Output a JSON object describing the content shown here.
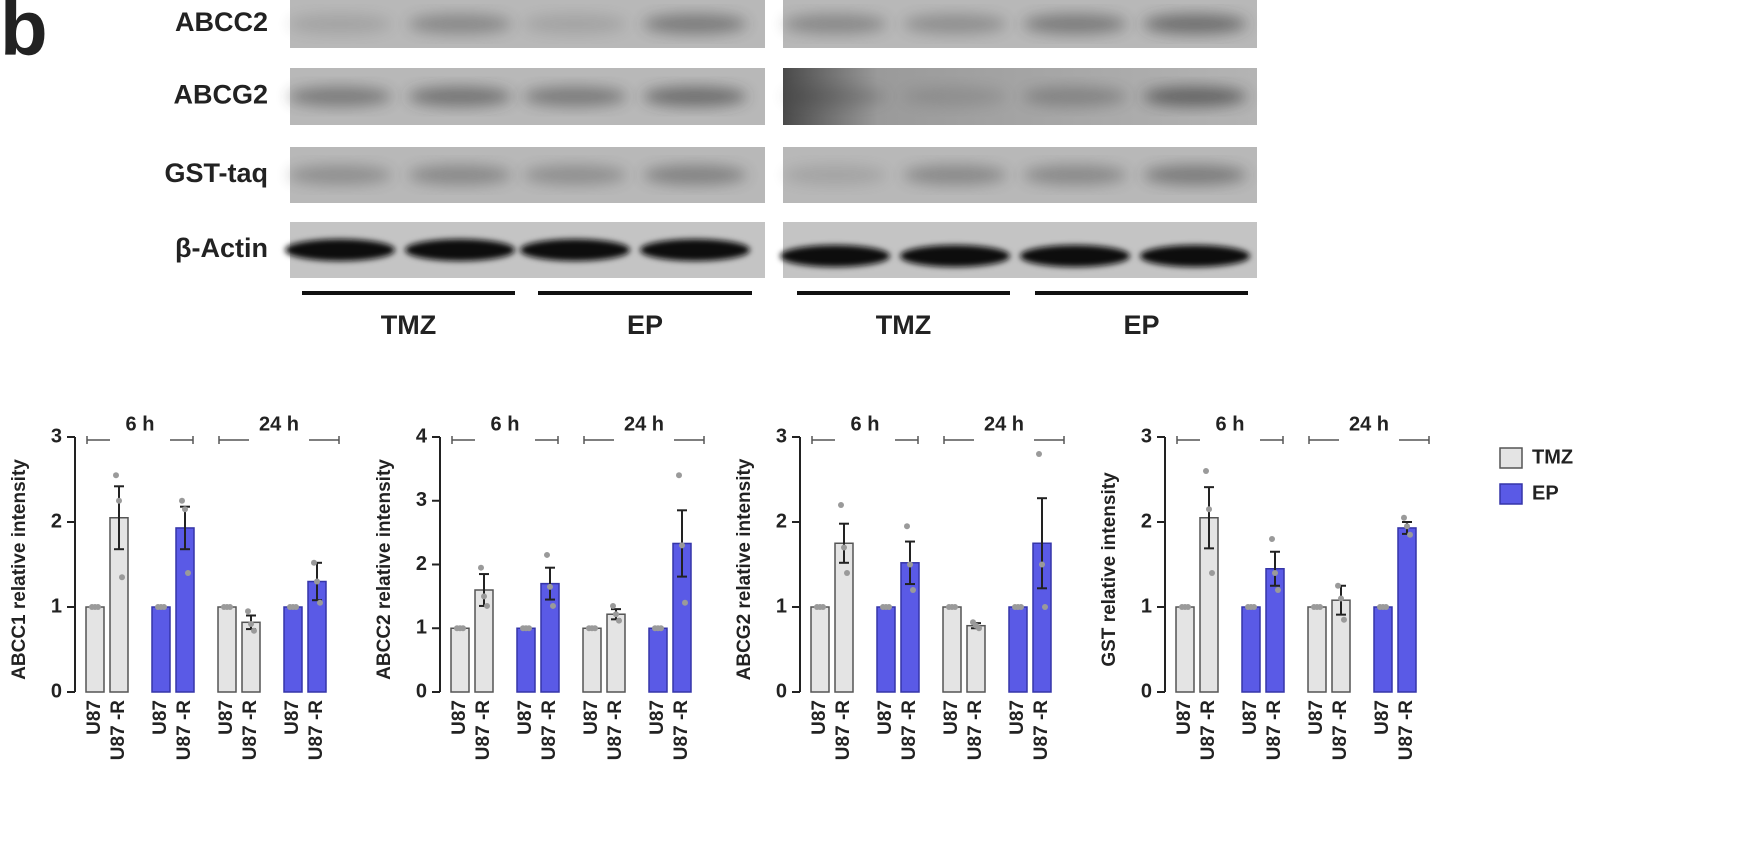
{
  "blot": {
    "panel": "b",
    "rows": [
      "ABCC2",
      "ABCG2",
      "GST-taq",
      "β-Actin"
    ],
    "groups": [
      "TMZ",
      "EP",
      "TMZ",
      "EP"
    ]
  },
  "chart_data": [
    {
      "type": "bar",
      "ylabel": "ABCC1 relative intensity",
      "categories": [
        "U87",
        "U87 -R",
        "U87",
        "U87 -R",
        "U87",
        "U87 -R",
        "U87",
        "U87 -R"
      ],
      "groups": [
        "6 h",
        "24 h"
      ],
      "ylim": [
        0,
        3
      ],
      "yticks": [
        0,
        1,
        2,
        3
      ],
      "series": [
        {
          "color": "#e4e4e4",
          "values": [
            1,
            2.05,
            null,
            null,
            1,
            0.82,
            null,
            null
          ],
          "errors": [
            0,
            0.37,
            null,
            null,
            0,
            0.08,
            null,
            null
          ],
          "points": [
            [
              1,
              1,
              1
            ],
            [
              2.55,
              2.25,
              1.35
            ],
            null,
            null,
            [
              1,
              1,
              1
            ],
            [
              0.95,
              0.8,
              0.72
            ],
            null,
            null
          ]
        },
        {
          "color": "#5a5ae6",
          "values": [
            null,
            null,
            1,
            1.93,
            null,
            null,
            1,
            1.3
          ],
          "errors": [
            null,
            null,
            0,
            0.25,
            null,
            null,
            0,
            0.22
          ],
          "points": [
            null,
            null,
            [
              1,
              1,
              1
            ],
            [
              2.25,
              2.15,
              1.4
            ],
            null,
            null,
            [
              1,
              1,
              1
            ],
            [
              1.52,
              1.3,
              1.05
            ]
          ]
        }
      ]
    },
    {
      "type": "bar",
      "ylabel": "ABCC2 relative intensity",
      "categories": [
        "U87",
        "U87 -R",
        "U87",
        "U87 -R",
        "U87",
        "U87 -R",
        "U87",
        "U87 -R"
      ],
      "groups": [
        "6 h",
        "24 h"
      ],
      "ylim": [
        0,
        4
      ],
      "yticks": [
        0,
        1,
        2,
        3,
        4
      ],
      "series": [
        {
          "color": "#e4e4e4",
          "values": [
            1,
            1.6,
            null,
            null,
            1,
            1.22,
            null,
            null
          ],
          "errors": [
            0,
            0.25,
            null,
            null,
            0,
            0.08,
            null,
            null
          ],
          "points": [
            [
              1,
              1,
              1
            ],
            [
              1.95,
              1.5,
              1.35
            ],
            null,
            null,
            [
              1,
              1,
              1
            ],
            [
              1.35,
              1.22,
              1.12
            ],
            null,
            null
          ]
        },
        {
          "color": "#5a5ae6",
          "values": [
            null,
            null,
            1,
            1.7,
            null,
            null,
            1,
            2.33
          ],
          "errors": [
            null,
            null,
            0,
            0.25,
            null,
            null,
            0,
            0.52
          ],
          "points": [
            null,
            null,
            [
              1,
              1,
              1
            ],
            [
              2.15,
              1.65,
              1.35
            ],
            null,
            null,
            [
              1,
              1,
              1
            ],
            [
              3.4,
              2.3,
              1.4
            ]
          ]
        }
      ]
    },
    {
      "type": "bar",
      "ylabel": "ABCG2 relative intensity",
      "categories": [
        "U87",
        "U87 -R",
        "U87",
        "U87 -R",
        "U87",
        "U87 -R",
        "U87",
        "U87 -R"
      ],
      "groups": [
        "6 h",
        "24 h"
      ],
      "ylim": [
        0,
        3
      ],
      "yticks": [
        0,
        1,
        2,
        3
      ],
      "series": [
        {
          "color": "#e4e4e4",
          "values": [
            1,
            1.75,
            null,
            null,
            1,
            0.78,
            null,
            null
          ],
          "errors": [
            0,
            0.23,
            null,
            null,
            0,
            0.03,
            null,
            null
          ],
          "points": [
            [
              1,
              1,
              1
            ],
            [
              2.2,
              1.7,
              1.4
            ],
            null,
            null,
            [
              1,
              1,
              1
            ],
            [
              0.82,
              0.78,
              0.75
            ],
            null,
            null
          ]
        },
        {
          "color": "#5a5ae6",
          "values": [
            null,
            null,
            1,
            1.52,
            null,
            null,
            1,
            1.75
          ],
          "errors": [
            null,
            null,
            0,
            0.25,
            null,
            null,
            0,
            0.53
          ],
          "points": [
            null,
            null,
            [
              1,
              1,
              1
            ],
            [
              1.95,
              1.5,
              1.2
            ],
            null,
            null,
            [
              1,
              1,
              1
            ],
            [
              2.8,
              1.5,
              1.0
            ]
          ]
        }
      ]
    },
    {
      "type": "bar",
      "ylabel": "GST relative intensity",
      "legend": "right",
      "categories": [
        "U87",
        "U87 -R",
        "U87",
        "U87 -R",
        "U87",
        "U87 -R",
        "U87",
        "U87 -R"
      ],
      "groups": [
        "6 h",
        "24 h"
      ],
      "ylim": [
        0,
        3
      ],
      "yticks": [
        0,
        1,
        2,
        3
      ],
      "series": [
        {
          "name": "TMZ",
          "color": "#e4e4e4",
          "values": [
            1,
            2.05,
            null,
            null,
            1,
            1.08,
            null,
            null
          ],
          "errors": [
            0,
            0.36,
            null,
            null,
            0,
            0.17,
            null,
            null
          ],
          "points": [
            [
              1,
              1,
              1
            ],
            [
              2.6,
              2.15,
              1.4
            ],
            null,
            null,
            [
              1,
              1,
              1
            ],
            [
              1.25,
              1.1,
              0.85
            ],
            null,
            null
          ]
        },
        {
          "name": "EP",
          "color": "#5a5ae6",
          "values": [
            null,
            null,
            1,
            1.45,
            null,
            null,
            1,
            1.93
          ],
          "errors": [
            null,
            null,
            0,
            0.2,
            null,
            null,
            0,
            0.07
          ],
          "points": [
            null,
            null,
            [
              1,
              1,
              1
            ],
            [
              1.8,
              1.4,
              1.2
            ],
            null,
            null,
            [
              1,
              1,
              1
            ],
            [
              2.05,
              1.95,
              1.85
            ]
          ]
        }
      ]
    }
  ]
}
